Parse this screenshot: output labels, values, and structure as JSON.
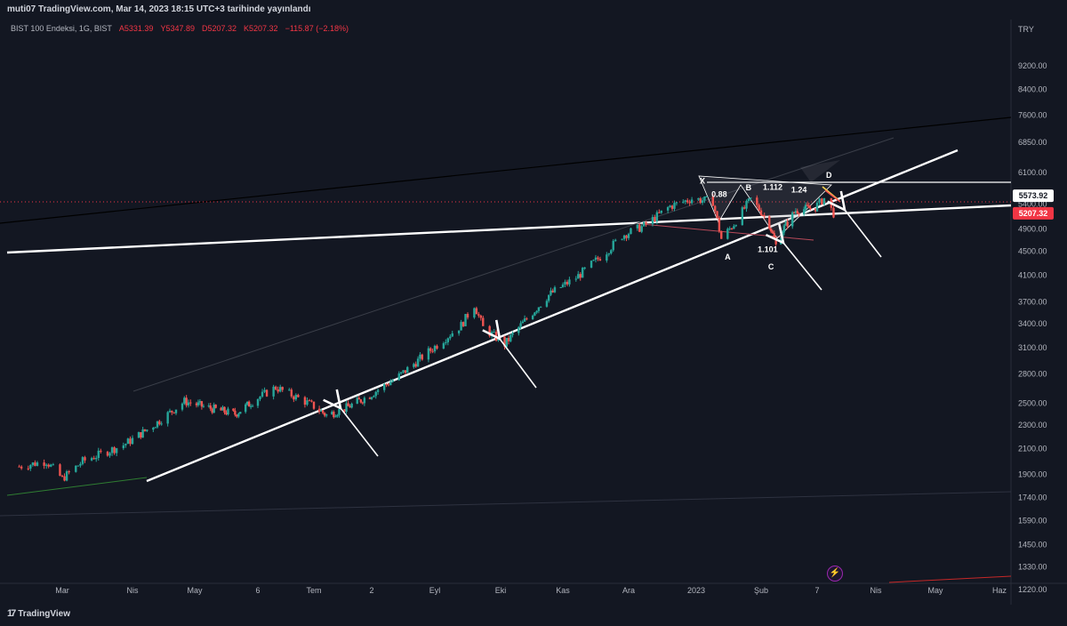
{
  "header": {
    "published": "muti07 TradingView.com, Mar 14, 2023 18:15 UTC+3 tarihinde yayınlandı"
  },
  "legend": {
    "symbol": "BIST 100 Endeksi, 1G, BIST",
    "open": "A5331.39",
    "high": "Y5347.89",
    "low": "D5207.32",
    "close": "K5207.32",
    "change": "−115.87 (−2.18%)"
  },
  "axis": {
    "currency": "TRY"
  },
  "brand": {
    "name": "TradingView",
    "mark": "17"
  },
  "colors": {
    "bg": "#131722",
    "up": "#26a69a",
    "down": "#ef5350",
    "line": "#ffffff",
    "accent": "#f23645"
  },
  "chart_data": {
    "type": "candlestick",
    "y_scale": "log",
    "ylim": [
      1150,
      11000
    ],
    "y_ticks": [
      9200,
      8400,
      7600,
      6850,
      6100,
      5400,
      4900,
      4500,
      4100,
      3700,
      3400,
      3100,
      2800,
      2500,
      2300,
      2100,
      1900,
      1740,
      1590,
      1450,
      1330,
      1220
    ],
    "y_tick_labels": [
      "9200.00",
      "8400.00",
      "7600.00",
      "6850.00",
      "6100.00",
      "5400.00",
      "4900.00",
      "4500.00",
      "4100.00",
      "3700.00",
      "3400.00",
      "3100.00",
      "2800.00",
      "2500.00",
      "2300.00",
      "2100.00",
      "1900.00",
      "1740.00",
      "1590.00",
      "1450.00",
      "1330.00",
      "1220.00"
    ],
    "x_ticks": [
      "2022-03-01",
      "2022-04-01",
      "2022-05-01",
      "2022-06-06",
      "2022-07-01",
      "2022-08-02",
      "2022-09-01",
      "2022-10-01",
      "2022-11-01",
      "2022-12-01",
      "2023-01-01",
      "2023-02-01",
      "2023-03-07",
      "2023-04-01",
      "2023-05-01",
      "2023-06-01"
    ],
    "x_tick_labels": [
      "Mar",
      "Nis",
      "May",
      "6",
      "Tem",
      "2",
      "Eyl",
      "Eki",
      "Kas",
      "Ara",
      "2023",
      "Şub",
      "7",
      "Nis",
      "May",
      "Haz"
    ],
    "price_path": [
      {
        "x": "2022-02-10",
        "y": 1960
      },
      {
        "x": "2022-02-22",
        "y": 2000
      },
      {
        "x": "2022-03-01",
        "y": 1870
      },
      {
        "x": "2022-03-10",
        "y": 2000
      },
      {
        "x": "2022-03-28",
        "y": 2130
      },
      {
        "x": "2022-04-12",
        "y": 2310
      },
      {
        "x": "2022-04-26",
        "y": 2520
      },
      {
        "x": "2022-05-06",
        "y": 2470
      },
      {
        "x": "2022-05-24",
        "y": 2400
      },
      {
        "x": "2022-06-08",
        "y": 2580
      },
      {
        "x": "2022-06-14",
        "y": 2660
      },
      {
        "x": "2022-06-27",
        "y": 2520
      },
      {
        "x": "2022-07-08",
        "y": 2390
      },
      {
        "x": "2022-07-18",
        "y": 2450
      },
      {
        "x": "2022-08-01",
        "y": 2580
      },
      {
        "x": "2022-08-15",
        "y": 2780
      },
      {
        "x": "2022-08-29",
        "y": 3050
      },
      {
        "x": "2022-09-13",
        "y": 3380
      },
      {
        "x": "2022-09-19",
        "y": 3660
      },
      {
        "x": "2022-09-23",
        "y": 3350
      },
      {
        "x": "2022-10-03",
        "y": 3140
      },
      {
        "x": "2022-10-10",
        "y": 3350
      },
      {
        "x": "2022-10-25",
        "y": 3800
      },
      {
        "x": "2022-11-07",
        "y": 4060
      },
      {
        "x": "2022-11-21",
        "y": 4500
      },
      {
        "x": "2022-11-28",
        "y": 4780
      },
      {
        "x": "2022-12-08",
        "y": 4960
      },
      {
        "x": "2022-12-20",
        "y": 5350
      },
      {
        "x": "2022-12-30",
        "y": 5510
      },
      {
        "x": "2023-01-09",
        "y": 5450
      },
      {
        "x": "2023-01-13",
        "y": 4720
      },
      {
        "x": "2023-01-19",
        "y": 5000
      },
      {
        "x": "2023-01-27",
        "y": 5500
      },
      {
        "x": "2023-02-06",
        "y": 5000
      },
      {
        "x": "2023-02-10",
        "y": 4600
      },
      {
        "x": "2023-02-14",
        "y": 4880
      },
      {
        "x": "2023-02-22",
        "y": 5270
      },
      {
        "x": "2023-03-06",
        "y": 5330
      },
      {
        "x": "2023-03-10",
        "y": 5520
      },
      {
        "x": "2023-03-14",
        "y": 5207
      }
    ],
    "price_labels": [
      {
        "label": "5573.92",
        "value": 5573.92,
        "style": "white"
      },
      {
        "label": "5207.32",
        "value": 5207.32,
        "style": "red"
      }
    ],
    "annotations": [
      {
        "text": "X",
        "date": "2023-01-04",
        "price": 5900
      },
      {
        "text": "0.88",
        "date": "2023-01-12",
        "price": 5600
      },
      {
        "text": "B",
        "date": "2023-01-26",
        "price": 5750
      },
      {
        "text": "1.112",
        "date": "2023-02-08",
        "price": 5760
      },
      {
        "text": "1.24",
        "date": "2023-02-24",
        "price": 5700
      },
      {
        "text": "D",
        "date": "2023-03-12",
        "price": 6030
      },
      {
        "text": "A",
        "date": "2023-01-16",
        "price": 4400
      },
      {
        "text": "1.101",
        "date": "2023-02-05",
        "price": 4530
      },
      {
        "text": "C",
        "date": "2023-02-07",
        "price": 4240
      }
    ]
  }
}
